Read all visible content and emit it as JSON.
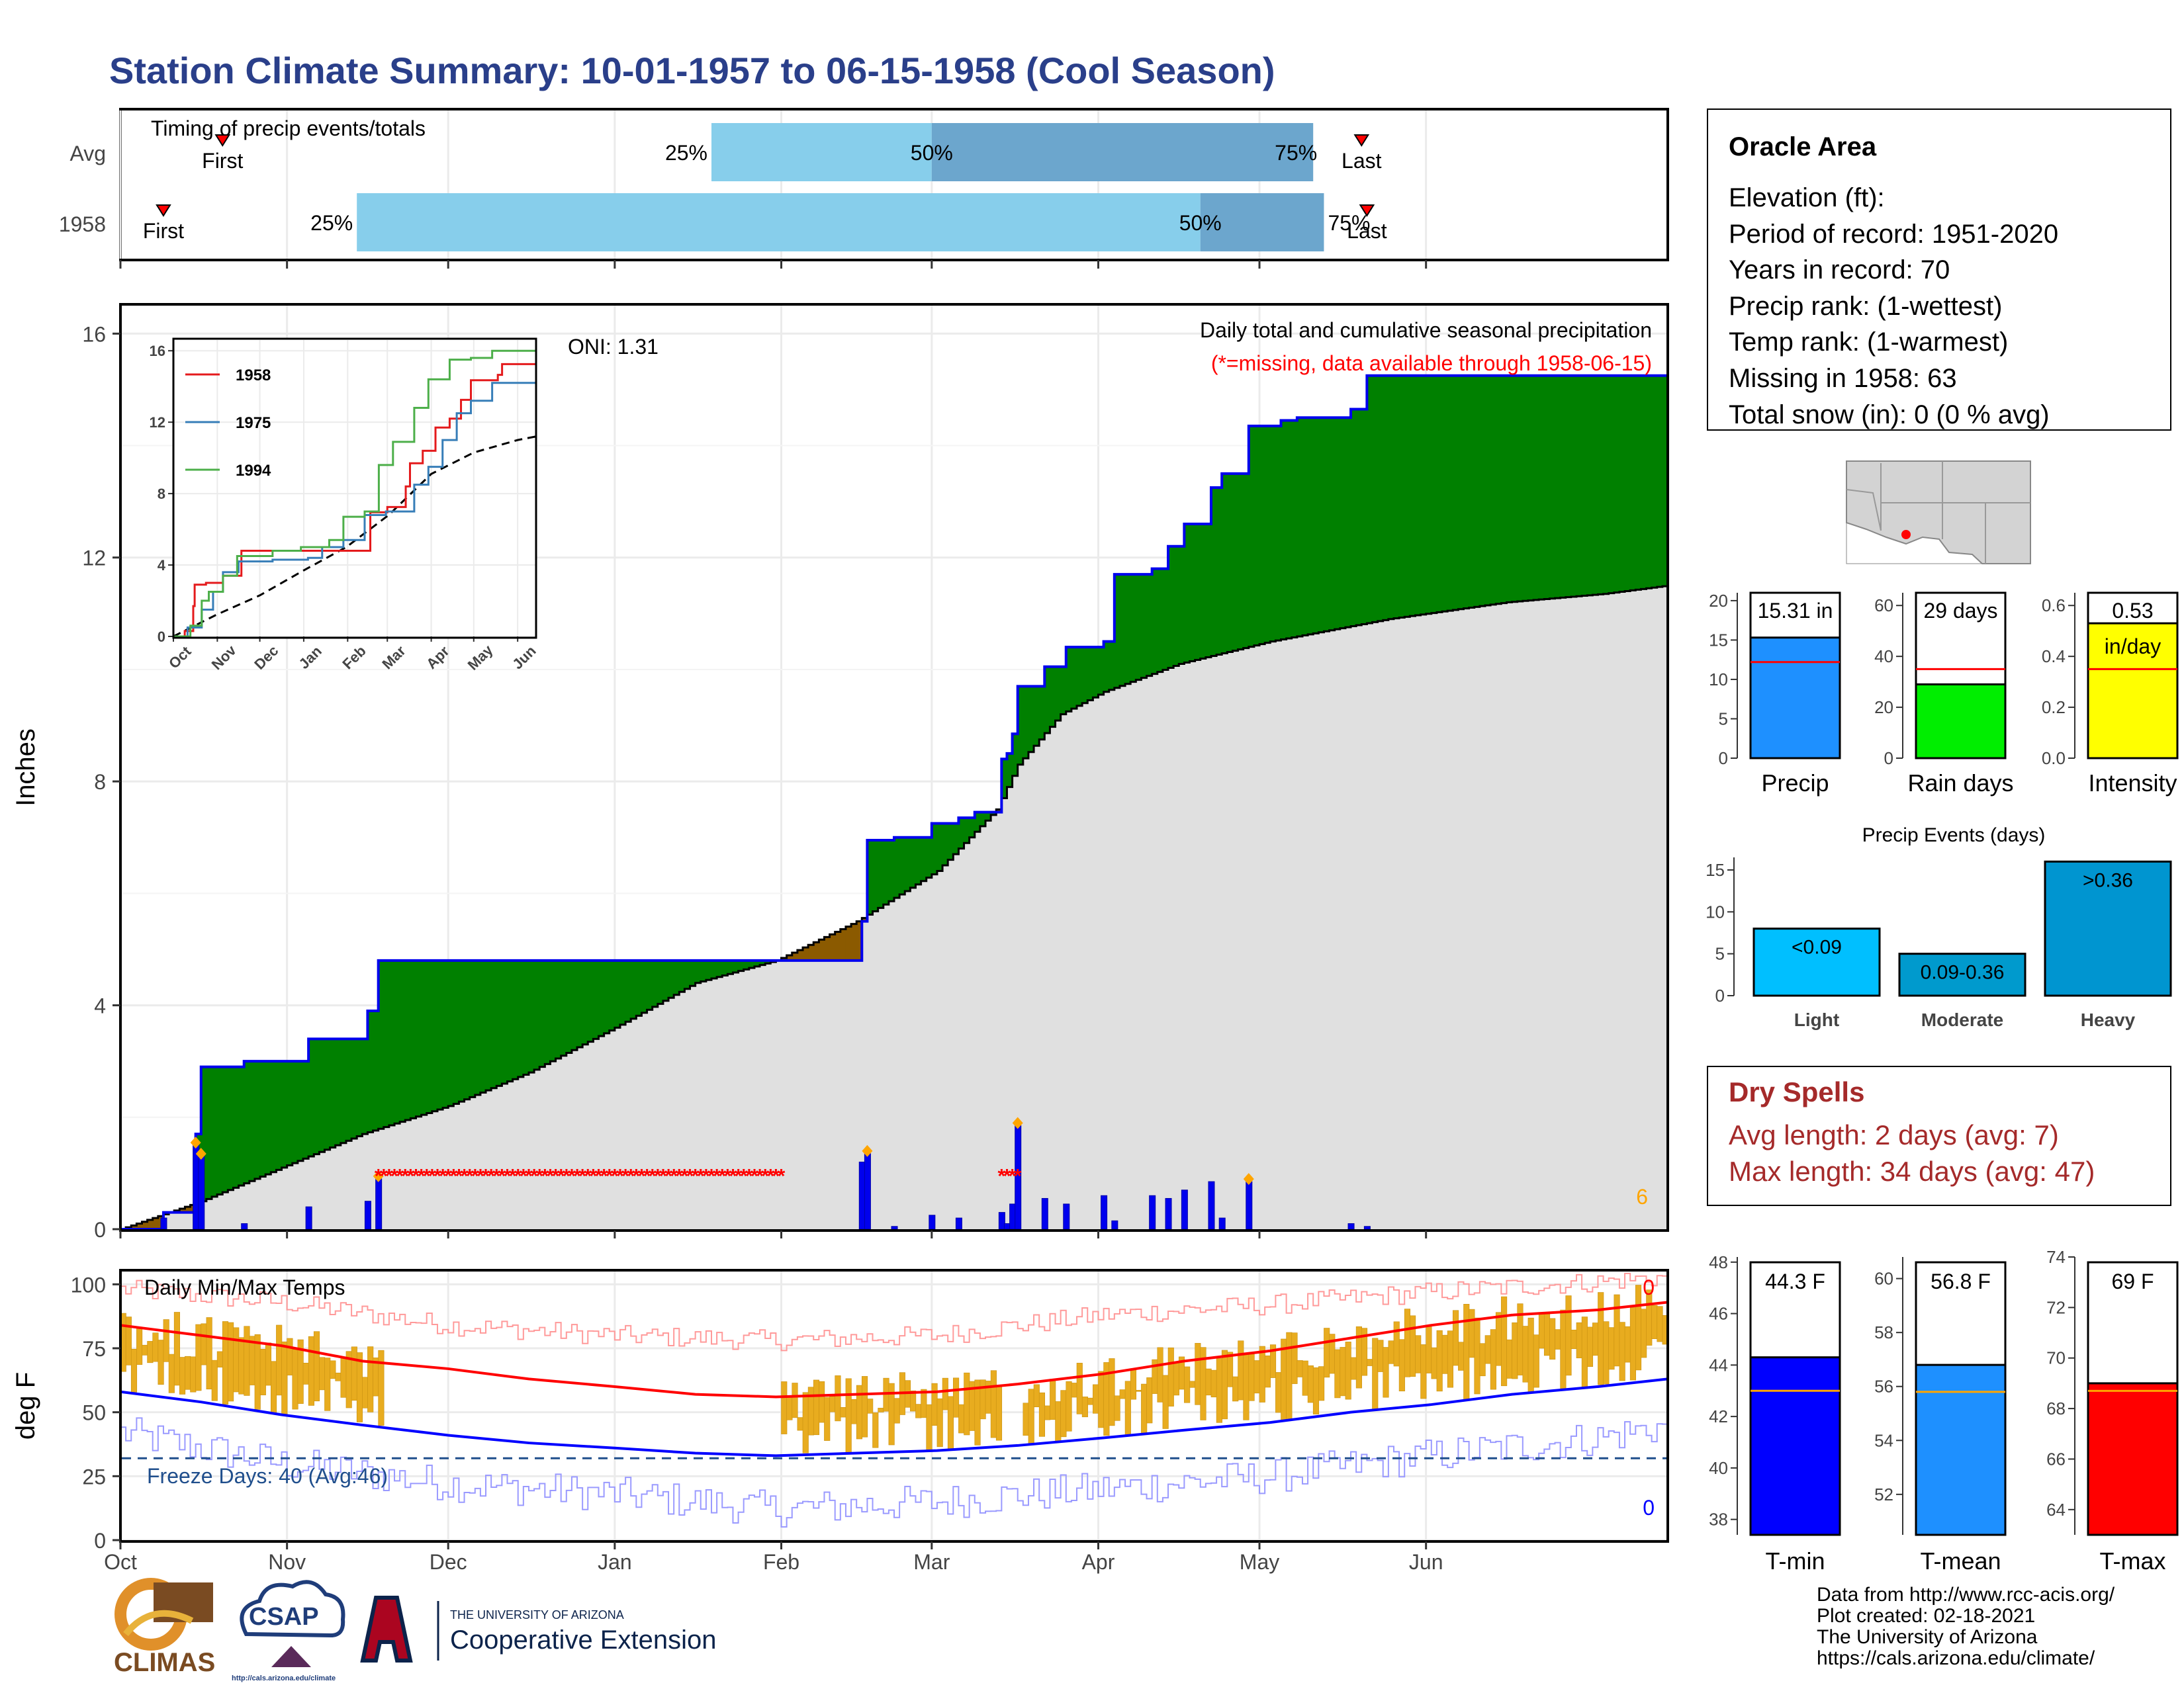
{
  "title": "Station Climate Summary: 10-01-1957 to 06-15-1958 (Cool Season)",
  "months": [
    "Oct",
    "Nov",
    "Dec",
    "Jan",
    "Feb",
    "Mar",
    "Apr",
    "May",
    "Jun"
  ],
  "timing": {
    "label": "Timing of precip events/totals",
    "rows": [
      {
        "name": "Avg",
        "first_day": 19,
        "last_day": 231,
        "p25": 110,
        "p50": 151,
        "p75": 222
      },
      {
        "name": "1958",
        "first_day": 8,
        "last_day": 232,
        "p25": 44,
        "p50": 201,
        "p75": 224
      }
    ],
    "pct_labels": [
      "25%",
      "50%",
      "75%"
    ],
    "first_label": "First",
    "last_label": "Last"
  },
  "precip_panel": {
    "ylabel": "Inches",
    "yticks": [
      "0",
      "4",
      "8",
      "12",
      "16"
    ],
    "oni": "ONI: 1.31",
    "title": "Daily total and cumulative seasonal precipitation",
    "missing_note": "(*=missing, data available through 1958-06-15)",
    "corner_count": "6",
    "colors": {
      "above": "#008000",
      "below": "#8B5A00",
      "avg_fill": "#e0e0e0",
      "line": "#0000ee",
      "missing": "#ff0000"
    }
  },
  "chart_data": [
    {
      "type": "area",
      "name": "cumulative-precip",
      "title": "Daily total and cumulative seasonal precipitation",
      "ylabel": "Inches",
      "ylim": [
        0,
        16.5
      ],
      "x_unit": "day of season starting 1957-10-01",
      "cum_1958": [
        [
          0,
          0
        ],
        [
          8,
          0.3
        ],
        [
          14,
          1.7
        ],
        [
          15,
          2.9
        ],
        [
          23,
          3.0
        ],
        [
          35,
          3.4
        ],
        [
          46,
          3.9
        ],
        [
          48,
          4.8
        ],
        [
          123,
          4.8
        ],
        [
          137,
          4.8
        ],
        [
          138,
          5.5
        ],
        [
          139,
          6.95
        ],
        [
          144,
          7.0
        ],
        [
          151,
          7.25
        ],
        [
          156,
          7.35
        ],
        [
          159,
          7.45
        ],
        [
          164,
          8.4
        ],
        [
          165,
          8.5
        ],
        [
          166,
          8.85
        ],
        [
          167,
          9.7
        ],
        [
          172,
          10.05
        ],
        [
          176,
          10.4
        ],
        [
          183,
          10.5
        ],
        [
          185,
          11.7
        ],
        [
          192,
          11.8
        ],
        [
          195,
          12.2
        ],
        [
          198,
          12.6
        ],
        [
          203,
          13.25
        ],
        [
          205,
          13.5
        ],
        [
          210,
          14.35
        ],
        [
          216,
          14.45
        ],
        [
          219,
          14.5
        ],
        [
          229,
          14.65
        ],
        [
          232,
          15.25
        ],
        [
          288,
          15.31
        ]
      ],
      "cum_avg": [
        [
          0,
          0
        ],
        [
          15,
          0.5
        ],
        [
          30,
          1.1
        ],
        [
          45,
          1.7
        ],
        [
          61,
          2.2
        ],
        [
          76,
          2.8
        ],
        [
          92,
          3.6
        ],
        [
          107,
          4.4
        ],
        [
          122,
          4.8
        ],
        [
          137,
          5.5
        ],
        [
          152,
          6.4
        ],
        [
          163,
          7.5
        ],
        [
          167,
          8.3
        ],
        [
          175,
          9.2
        ],
        [
          183,
          9.6
        ],
        [
          197,
          10.1
        ],
        [
          214,
          10.5
        ],
        [
          236,
          10.9
        ],
        [
          258,
          11.2
        ],
        [
          276,
          11.35
        ],
        [
          288,
          11.5
        ]
      ],
      "daily": [
        [
          8,
          0.2
        ],
        [
          14,
          1.5
        ],
        [
          15,
          1.3
        ],
        [
          23,
          0.1
        ],
        [
          35,
          0.4
        ],
        [
          46,
          0.5
        ],
        [
          48,
          0.9
        ],
        [
          138,
          1.2
        ],
        [
          139,
          1.35
        ],
        [
          144,
          0.05
        ],
        [
          151,
          0.25
        ],
        [
          156,
          0.2
        ],
        [
          164,
          0.3
        ],
        [
          165,
          0.1
        ],
        [
          166,
          0.45
        ],
        [
          167,
          1.85
        ],
        [
          172,
          0.55
        ],
        [
          176,
          0.45
        ],
        [
          183,
          0.6
        ],
        [
          185,
          0.15
        ],
        [
          192,
          0.6
        ],
        [
          195,
          0.55
        ],
        [
          198,
          0.7
        ],
        [
          203,
          0.85
        ],
        [
          205,
          0.2
        ],
        [
          210,
          0.85
        ],
        [
          229,
          0.1
        ],
        [
          232,
          0.05
        ]
      ],
      "heavy_markers": [
        14,
        15,
        48,
        139,
        167,
        210
      ],
      "missing_days": [
        [
          48,
          123
        ],
        [
          164,
          167
        ]
      ]
    },
    {
      "type": "line",
      "name": "inset-cumulative",
      "ylim": [
        0,
        16
      ],
      "yticks": [
        0,
        4,
        8,
        12,
        16
      ],
      "series": [
        {
          "name": "1958",
          "color": "#e41a1c",
          "points": [
            [
              0,
              0
            ],
            [
              8,
              0.3
            ],
            [
              14,
              1.7
            ],
            [
              15,
              2.9
            ],
            [
              23,
              3.0
            ],
            [
              35,
              3.4
            ],
            [
              48,
              4.8
            ],
            [
              137,
              4.8
            ],
            [
              139,
              6.95
            ],
            [
              151,
              7.25
            ],
            [
              164,
              8.4
            ],
            [
              167,
              9.7
            ],
            [
              176,
              10.4
            ],
            [
              185,
              11.7
            ],
            [
              195,
              12.2
            ],
            [
              203,
              13.25
            ],
            [
              210,
              14.35
            ],
            [
              229,
              14.65
            ],
            [
              232,
              15.25
            ],
            [
              256,
              15.31
            ]
          ]
        },
        {
          "name": "1975",
          "color": "#377eb8",
          "points": [
            [
              0,
              0
            ],
            [
              10,
              0.5
            ],
            [
              20,
              1.5
            ],
            [
              28,
              2.5
            ],
            [
              35,
              3.6
            ],
            [
              46,
              4.2
            ],
            [
              70,
              4.3
            ],
            [
              95,
              4.4
            ],
            [
              105,
              5.0
            ],
            [
              120,
              5.4
            ],
            [
              135,
              6.8
            ],
            [
              150,
              7.0
            ],
            [
              170,
              8.5
            ],
            [
              180,
              9.5
            ],
            [
              190,
              11.0
            ],
            [
              200,
              12.5
            ],
            [
              210,
              13.2
            ],
            [
              225,
              14.2
            ],
            [
              256,
              14.2
            ]
          ]
        },
        {
          "name": "1994",
          "color": "#4daf4a",
          "points": [
            [
              0,
              0
            ],
            [
              12,
              0.6
            ],
            [
              20,
              2.0
            ],
            [
              25,
              2.5
            ],
            [
              35,
              3.4
            ],
            [
              45,
              4.5
            ],
            [
              70,
              4.8
            ],
            [
              90,
              5.0
            ],
            [
              110,
              5.4
            ],
            [
              120,
              6.7
            ],
            [
              135,
              7.0
            ],
            [
              145,
              9.6
            ],
            [
              155,
              10.9
            ],
            [
              170,
              12.8
            ],
            [
              180,
              14.4
            ],
            [
              195,
              15.5
            ],
            [
              210,
              15.6
            ],
            [
              225,
              16.0
            ],
            [
              256,
              16.3
            ]
          ]
        }
      ],
      "avg": [
        [
          0,
          0
        ],
        [
          30,
          1.2
        ],
        [
          61,
          2.3
        ],
        [
          92,
          3.7
        ],
        [
          122,
          5.0
        ],
        [
          152,
          6.8
        ],
        [
          182,
          9.1
        ],
        [
          212,
          10.3
        ],
        [
          243,
          11.0
        ],
        [
          256,
          11.2
        ]
      ]
    },
    {
      "type": "line",
      "name": "daily-temps",
      "title": "Daily Min/Max Temps",
      "ylabel": "deg F",
      "ylim": [
        0,
        105
      ],
      "yticks": [
        0,
        25,
        50,
        75,
        100
      ],
      "freeze_line": 32,
      "avg_max": [
        [
          0,
          84
        ],
        [
          15,
          80
        ],
        [
          30,
          76
        ],
        [
          45,
          70
        ],
        [
          61,
          67
        ],
        [
          76,
          63
        ],
        [
          92,
          60
        ],
        [
          107,
          57
        ],
        [
          122,
          56
        ],
        [
          137,
          57
        ],
        [
          152,
          58
        ],
        [
          167,
          61
        ],
        [
          183,
          65
        ],
        [
          198,
          70
        ],
        [
          214,
          74
        ],
        [
          229,
          79
        ],
        [
          244,
          84
        ],
        [
          259,
          88
        ],
        [
          275,
          90
        ],
        [
          288,
          93
        ]
      ],
      "avg_min": [
        [
          0,
          58
        ],
        [
          15,
          54
        ],
        [
          30,
          49
        ],
        [
          45,
          45
        ],
        [
          61,
          41
        ],
        [
          76,
          38
        ],
        [
          92,
          36
        ],
        [
          107,
          34
        ],
        [
          122,
          33
        ],
        [
          137,
          34
        ],
        [
          152,
          35
        ],
        [
          167,
          37
        ],
        [
          183,
          40
        ],
        [
          198,
          43
        ],
        [
          214,
          46
        ],
        [
          229,
          50
        ],
        [
          244,
          53
        ],
        [
          259,
          57
        ],
        [
          275,
          60
        ],
        [
          288,
          63
        ]
      ],
      "record_max": [
        [
          0,
          98
        ],
        [
          30,
          93
        ],
        [
          61,
          84
        ],
        [
          92,
          80
        ],
        [
          122,
          78
        ],
        [
          152,
          80
        ],
        [
          183,
          88
        ],
        [
          214,
          92
        ],
        [
          244,
          97
        ],
        [
          275,
          101
        ],
        [
          288,
          103
        ]
      ],
      "record_min": [
        [
          0,
          42
        ],
        [
          30,
          30
        ],
        [
          61,
          22
        ],
        [
          92,
          18
        ],
        [
          122,
          12
        ],
        [
          152,
          15
        ],
        [
          183,
          20
        ],
        [
          214,
          25
        ],
        [
          244,
          33
        ],
        [
          275,
          40
        ],
        [
          288,
          45
        ]
      ]
    },
    {
      "type": "bar",
      "name": "precip-summary",
      "categories": [
        "Precip",
        "Rain days",
        "Intensity"
      ],
      "values": [
        15.31,
        29,
        0.53
      ],
      "averages": [
        12.2,
        35,
        0.35
      ],
      "ylims": [
        [
          0,
          21
        ],
        [
          0,
          65
        ],
        [
          0,
          0.65
        ]
      ]
    },
    {
      "type": "bar",
      "name": "precip-events",
      "title": "Precip Events (days)",
      "categories": [
        "Light",
        "Moderate",
        "Heavy"
      ],
      "values": [
        8,
        5,
        16
      ],
      "ylim": [
        0,
        16.5
      ]
    },
    {
      "type": "bar",
      "name": "temp-summary",
      "categories": [
        "T-min",
        "T-mean",
        "T-max"
      ],
      "values": [
        44.3,
        56.8,
        69
      ],
      "averages": [
        43.0,
        55.8,
        68.7
      ]
    }
  ],
  "temp_panel": {
    "title": "Daily Min/Max Temps",
    "ylabel": "deg F",
    "freeze_text": "Freeze Days: 40 (Avg:46)",
    "count_top": "0",
    "count_bottom": "0"
  },
  "inset": {
    "legend": [
      "1958",
      "1975",
      "1994"
    ],
    "months": [
      "Oct",
      "Nov",
      "Dec",
      "Jan",
      "Feb",
      "Mar",
      "Apr",
      "May",
      "Jun"
    ],
    "yticks": [
      "0",
      "4",
      "8",
      "12",
      "16"
    ]
  },
  "station": {
    "name": "Oracle Area",
    "lines": [
      "Elevation (ft):",
      "Period of record: 1951-2020",
      "Years in record: 70",
      "Precip rank:  (1-wettest)",
      "Temp rank:  (1-warmest)",
      "Missing in 1958: 63",
      "Total snow (in): 0 (0 % avg)"
    ]
  },
  "summary_bars": {
    "precip": {
      "label": "Precip",
      "value_text": "15.31 in",
      "yticks": [
        "0",
        "5",
        "10",
        "15",
        "20"
      ],
      "color": "#1e90ff"
    },
    "rain_days": {
      "label": "Rain days",
      "value_text": "29 days",
      "yticks": [
        "0",
        "20",
        "40",
        "60"
      ],
      "color": "#00ee00"
    },
    "intensity": {
      "label": "Intensity",
      "value_text": "0.53",
      "unit_text": "in/day",
      "yticks": [
        "0.0",
        "0.2",
        "0.4",
        "0.6"
      ],
      "color": "#ffff00"
    }
  },
  "events": {
    "title": "Precip Events (days)",
    "bar_labels": [
      "<0.09",
      "0.09-0.36",
      ">0.36"
    ],
    "categories": [
      "Light",
      "Moderate",
      "Heavy"
    ],
    "yticks": [
      "0",
      "5",
      "10",
      "15"
    ],
    "colors": [
      "#00bfff",
      "#009acd",
      "#0095d0"
    ]
  },
  "dry_spells": {
    "title": "Dry Spells",
    "avg": "Avg length: 2 days (avg: 7)",
    "max": "Max length: 34 days (avg: 47)",
    "color": "#a52a2a"
  },
  "temp_bars": [
    {
      "label": "T-min",
      "value_text": "44.3 F",
      "yticks": [
        "38",
        "40",
        "42",
        "44",
        "46",
        "48"
      ],
      "color": "#0000ff"
    },
    {
      "label": "T-mean",
      "value_text": "56.8 F",
      "yticks": [
        "52",
        "54",
        "56",
        "58",
        "60"
      ],
      "color": "#1e90ff"
    },
    {
      "label": "T-max",
      "value_text": "69 F",
      "yticks": [
        "64",
        "66",
        "68",
        "70",
        "72",
        "74"
      ],
      "color": "#ff0000"
    }
  ],
  "footer": {
    "lines": [
      "Data from http://www.rcc-acis.org/",
      "Plot created: 02-18-2021",
      "The University of Arizona",
      "https://cals.arizona.edu/climate/"
    ]
  },
  "logos": {
    "climas": "CLIMAS",
    "csap": "CSAP",
    "csap_url": "http://cals.arizona.edu/climate",
    "ua_top": "THE UNIVERSITY OF ARIZONA",
    "ua_main": "Cooperative Extension"
  }
}
